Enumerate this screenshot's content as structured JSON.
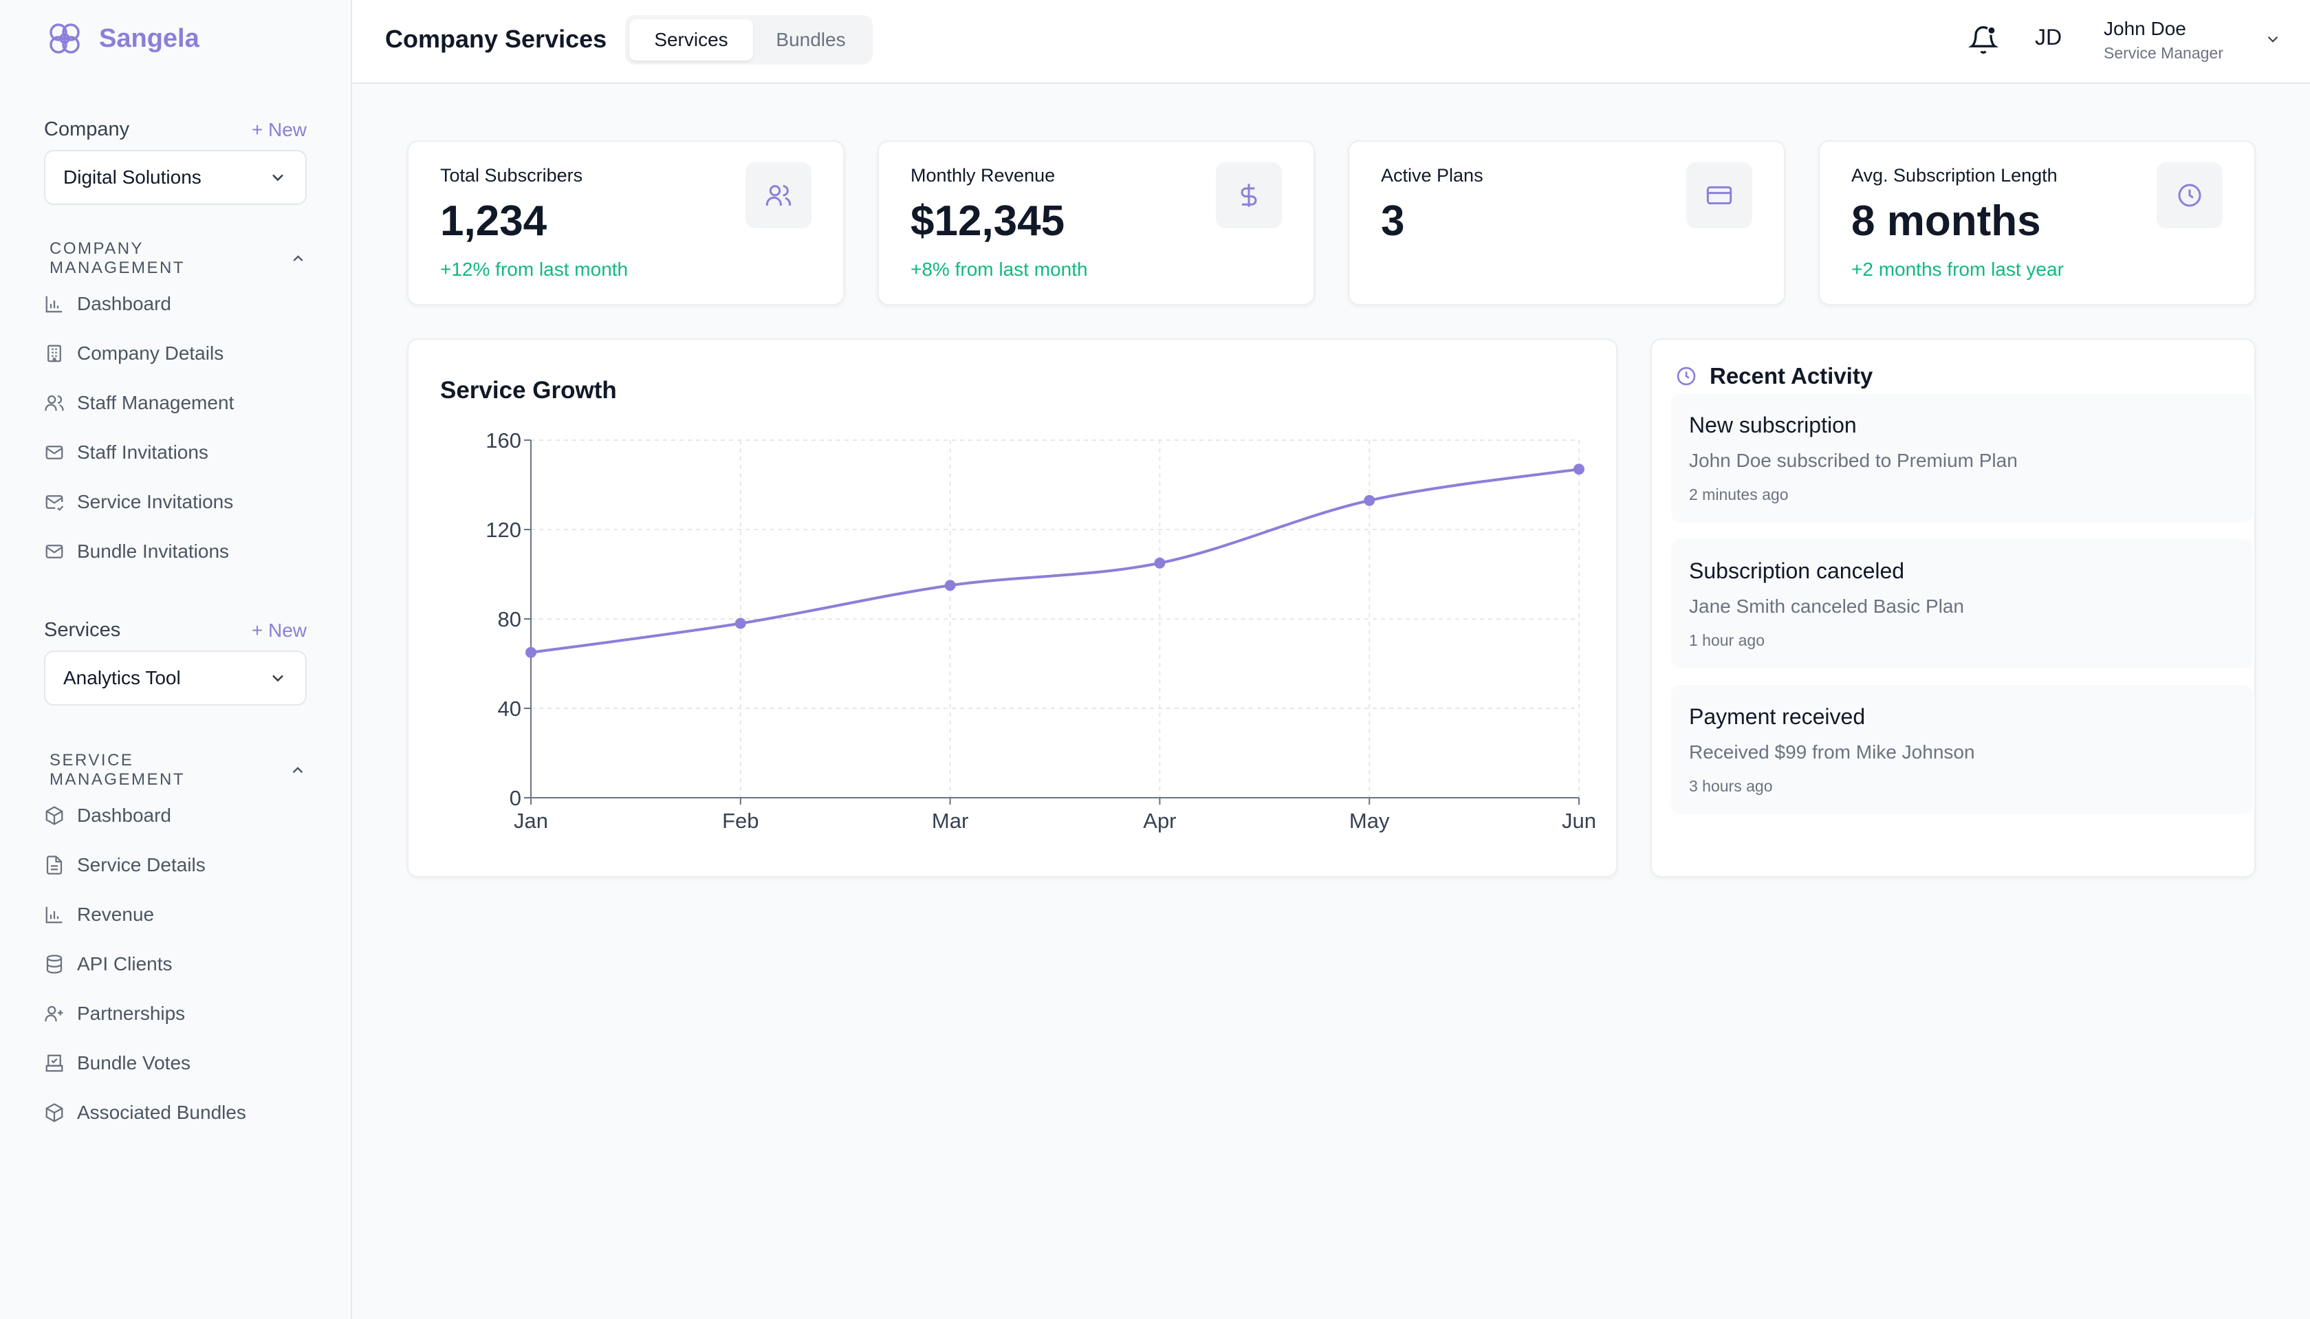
{
  "brand": {
    "name": "Sangela",
    "accent": "#8b7fd9",
    "positive": "#10b981"
  },
  "sidebar": {
    "company_label": "Company",
    "company_new": "+ New",
    "company_selected": "Digital Solutions",
    "company_mgmt_heading": "COMPANY MANAGEMENT",
    "company_items": [
      {
        "label": "Dashboard",
        "icon": "bar-chart-icon"
      },
      {
        "label": "Company Details",
        "icon": "building-icon"
      },
      {
        "label": "Staff Management",
        "icon": "users-icon"
      },
      {
        "label": "Staff Invitations",
        "icon": "mail-icon"
      },
      {
        "label": "Service Invitations",
        "icon": "mail-check-icon"
      },
      {
        "label": "Bundle Invitations",
        "icon": "mail-icon"
      }
    ],
    "services_label": "Services",
    "services_new": "+ New",
    "services_selected": "Analytics Tool",
    "service_mgmt_heading": "SERVICE MANAGEMENT",
    "service_items": [
      {
        "label": "Dashboard",
        "icon": "box-icon"
      },
      {
        "label": "Service Details",
        "icon": "file-text-icon"
      },
      {
        "label": "Revenue",
        "icon": "bar-chart-icon"
      },
      {
        "label": "API Clients",
        "icon": "database-icon"
      },
      {
        "label": "Partnerships",
        "icon": "user-plus-icon"
      },
      {
        "label": "Bundle Votes",
        "icon": "vote-icon"
      },
      {
        "label": "Associated Bundles",
        "icon": "box-icon"
      }
    ]
  },
  "header": {
    "title": "Company Services",
    "tabs": [
      {
        "label": "Services",
        "active": true
      },
      {
        "label": "Bundles",
        "active": false
      }
    ],
    "user": {
      "initials": "JD",
      "name": "John Doe",
      "role": "Service Manager"
    }
  },
  "stats": [
    {
      "title": "Total Subscribers",
      "value": "1,234",
      "change": "+12% from last month",
      "icon": "users-icon"
    },
    {
      "title": "Monthly Revenue",
      "value": "$12,345",
      "change": "+8% from last month",
      "icon": "dollar-icon"
    },
    {
      "title": "Active Plans",
      "value": "3",
      "change": "",
      "icon": "credit-card-icon"
    },
    {
      "title": "Avg. Subscription Length",
      "value": "8 months",
      "change": "+2 months from last year",
      "icon": "clock-icon"
    }
  ],
  "chart": {
    "title": "Service Growth"
  },
  "chart_data": {
    "type": "line",
    "categories": [
      "Jan",
      "Feb",
      "Mar",
      "Apr",
      "May",
      "Jun"
    ],
    "series": [
      {
        "values": [
          65,
          78,
          95,
          105,
          133,
          147
        ],
        "color": "#8b7fd9"
      }
    ],
    "ylim": [
      0,
      160
    ],
    "yticks": [
      0,
      40,
      80,
      120,
      160
    ],
    "grid": true
  },
  "activity": {
    "heading": "Recent Activity",
    "items": [
      {
        "title": "New subscription",
        "desc": "John Doe subscribed to Premium Plan",
        "time": "2 minutes ago"
      },
      {
        "title": "Subscription canceled",
        "desc": "Jane Smith canceled Basic Plan",
        "time": "1 hour ago"
      },
      {
        "title": "Payment received",
        "desc": "Received $99 from Mike Johnson",
        "time": "3 hours ago"
      }
    ]
  }
}
